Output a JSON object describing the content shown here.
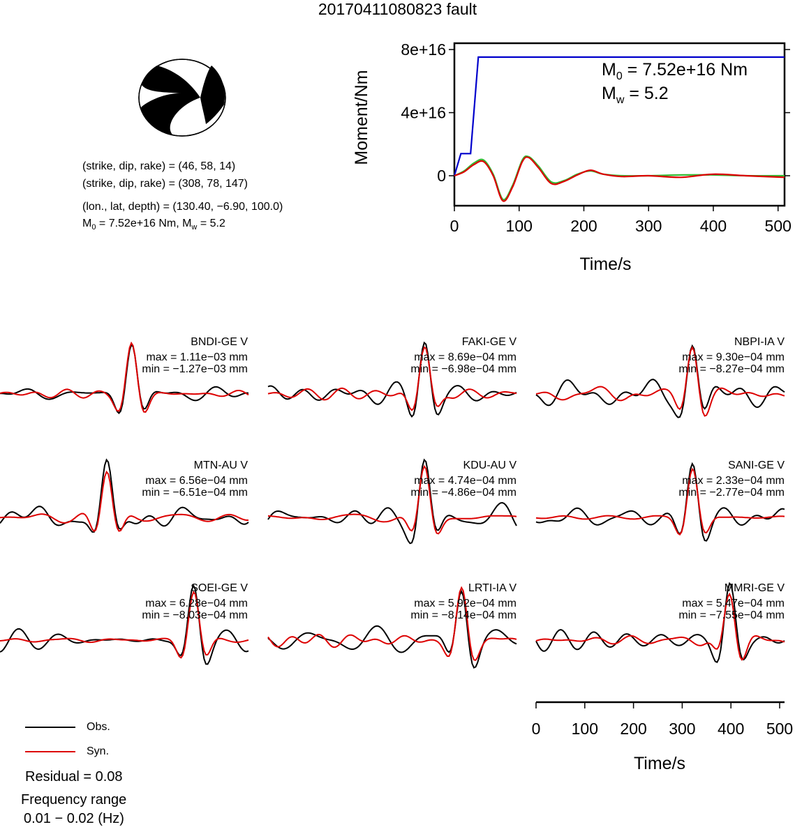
{
  "title": "20170411080823 fault",
  "solution": {
    "plane1": "(strike, dip, rake) = (46, 58, 14)",
    "plane2": "(strike, dip, rake) = (308, 78, 147)",
    "location": "(lon., lat, depth) = (130.40, −6.90, 100.0)",
    "m0_prefix": "M",
    "m0_sub": "0",
    "m0_rest": " = 7.52e+16 Nm, M",
    "mw_sub": "w",
    "mw_rest": " = 5.2"
  },
  "moment_plot": {
    "ylabel": "Moment/Nm",
    "xlabel": "Time/s",
    "yticks": [
      "0",
      "4e+16",
      "8e+16"
    ],
    "xticks": [
      "0",
      "100",
      "200",
      "300",
      "400",
      "500"
    ],
    "m0_label_prefix": "M",
    "m0_label_sub": "0",
    "m0_label_rest": " = 7.52e+16 Nm",
    "mw_label_prefix": "M",
    "mw_label_sub": "w",
    "mw_label_rest": " = 5.2"
  },
  "waveform_axis": {
    "xlabel": "Time/s",
    "xticks": [
      "0",
      "100",
      "200",
      "300",
      "400",
      "500"
    ]
  },
  "legend": {
    "obs": "Obs.",
    "syn": "Syn."
  },
  "residual": "Residual = 0.08",
  "freq_title": "Frequency range",
  "freq_range": "0.01 − 0.02 (Hz)",
  "colors": {
    "observed": "#000000",
    "synthetic": "#dd0000",
    "cumulative_moment": "#0000cc",
    "moment_rate_green": "#33bb33",
    "moment_rate_red": "#dd0000"
  },
  "chart_data": [
    {
      "type": "line",
      "title": "",
      "xlabel": "Time/s",
      "ylabel": "Moment/Nm",
      "xlim": [
        0,
        510
      ],
      "ylim": [
        -1.9e+16,
        8.4e+16
      ],
      "series": [
        {
          "x": [
            0,
            10,
            10,
            25,
            25,
            37,
            37,
            510
          ],
          "y": [
            0,
            1.4e+16,
            1.4e+16,
            1.4e+16,
            1.4e+16,
            7.52e+16,
            7.52e+16,
            7.52e+16
          ]
        },
        {
          "x": [
            0,
            15,
            30,
            45,
            60,
            75,
            90,
            105,
            115,
            130,
            150,
            170,
            190,
            210,
            230,
            260,
            300,
            350,
            400,
            450,
            510
          ],
          "y": [
            0,
            3000000000000000.0,
            8000000000000000.0,
            1e+16,
            1000000000000000.0,
            -1.5e+16,
            -6000000000000000.0,
            1e+16,
            1.2e+16,
            6000000000000000.0,
            -4000000000000000.0,
            -3000000000000000.0,
            1000000000000000.0,
            3000000000000000.0,
            1000000000000000.0,
            0.0,
            0.0,
            500000000000000.0,
            500000000000000.0,
            0.0,
            0.0
          ]
        },
        {
          "x": [
            0,
            15,
            30,
            45,
            60,
            75,
            90,
            105,
            115,
            130,
            150,
            170,
            190,
            210,
            230,
            260,
            300,
            350,
            400,
            450,
            510
          ],
          "y": [
            0,
            2500000000000000.0,
            7000000000000000.0,
            9000000000000000.0,
            0.0,
            -1.6e+16,
            -7000000000000000.0,
            9000000000000000.0,
            1.15e+16,
            5000000000000000.0,
            -5000000000000000.0,
            -3500000000000000.0,
            500000000000000.0,
            3500000000000000.0,
            1000000000000000.0,
            -500000000000000.0,
            0.0,
            -1000000000000000.0,
            1000000000000000.0,
            0.0,
            -1000000000000000.0
          ]
        }
      ]
    },
    {
      "type": "line",
      "stations": [
        {
          "name": "BNDI-GE V",
          "max": "max = 1.11e−03 mm",
          "min": "min = −1.27e−03 mm",
          "peak": 7
        },
        {
          "name": "FAKI-GE V",
          "max": "max = 8.69e−04 mm",
          "min": "min = −6.98e−04 mm",
          "peak": 9
        },
        {
          "name": "NBPI-IA V",
          "max": "max = 9.30e−04 mm",
          "min": "min = −8.27e−04 mm",
          "peak": 9
        },
        {
          "name": "MTN-AU V",
          "max": "max = 6.56e−04 mm",
          "min": "min = −6.51e−04 mm",
          "peak": 5
        },
        {
          "name": "KDU-AU V",
          "max": "max = 4.74e−04 mm",
          "min": "min = −4.86e−04 mm",
          "peak": 9
        },
        {
          "name": "SANI-GE V",
          "max": "max = 2.33e−04 mm",
          "min": "min = −2.77e−04 mm",
          "peak": 9
        },
        {
          "name": "SOEI-GE V",
          "max": "max = 6.28e−04 mm",
          "min": "min = −8.03e−04 mm",
          "peak": 12
        },
        {
          "name": "LRTI-IA V",
          "max": "max = 5.92e−04 mm",
          "min": "min = −8.14e−04 mm",
          "peak": 12
        },
        {
          "name": "MMRI-GE V",
          "max": "max = 5.47e−04 mm",
          "min": "min = −7.55e−04 mm",
          "peak": 12
        }
      ]
    }
  ]
}
